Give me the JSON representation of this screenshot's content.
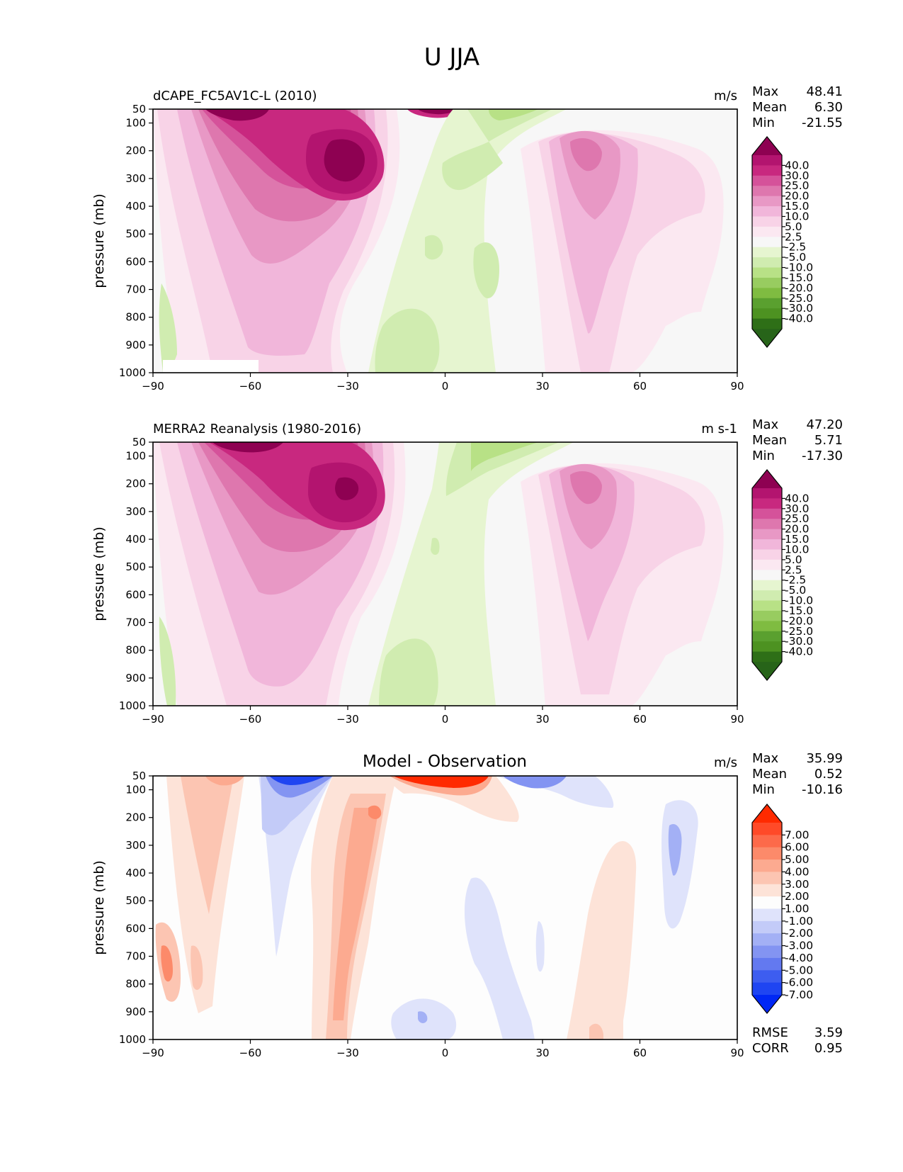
{
  "figure_title": "U JJA",
  "chart_data": [
    {
      "type": "contour",
      "title": "dCAPE_FC5AV1C-L (2010)",
      "units": "m/s",
      "xlabel": "",
      "ylabel": "pressure (mb)",
      "xlim": [
        -90,
        90
      ],
      "ylim": [
        1000,
        50
      ],
      "xticks": [
        "−90",
        "−60",
        "−30",
        "0",
        "30",
        "60",
        "90"
      ],
      "yticks": [
        "50",
        "100",
        "200",
        "300",
        "400",
        "500",
        "600",
        "700",
        "800",
        "900",
        "1000"
      ],
      "stats": [
        {
          "label": "Max",
          "value": "48.41"
        },
        {
          "label": "Mean",
          "value": "6.30"
        },
        {
          "label": "Min",
          "value": "-21.55"
        }
      ],
      "colorbar": {
        "labels": [
          "40.0",
          "30.0",
          "25.0",
          "20.0",
          "15.0",
          "10.0",
          "5.0",
          "2.5",
          "-2.5",
          "-5.0",
          "-10.0",
          "-15.0",
          "-20.0",
          "-25.0",
          "-30.0",
          "-40.0"
        ],
        "colors": [
          "#8e0152",
          "#b3146f",
          "#c8287f",
          "#d5529a",
          "#de77ae",
          "#e898c5",
          "#f1b6da",
          "#f8d3e7",
          "#fbe8f1",
          "#f7f7f7",
          "#e6f5d0",
          "#d0ecb0",
          "#b8e186",
          "#98cc60",
          "#7fbc41",
          "#5aa02f",
          "#4d9221",
          "#2e6f17",
          "#276419"
        ]
      },
      "features": [
        {
          "name": "southern-hemisphere-jet",
          "lat": -30,
          "plev": 200,
          "value": 45
        },
        {
          "name": "northern-hemisphere-jet",
          "lat": 43,
          "plev": 200,
          "value": 25
        },
        {
          "name": "tropical-easterlies",
          "lat": 10,
          "plev": 50,
          "value": -20
        }
      ]
    },
    {
      "type": "contour",
      "title": "MERRA2 Reanalysis (1980-2016)",
      "units": "m s-1",
      "xlabel": "",
      "ylabel": "pressure (mb)",
      "xlim": [
        -90,
        90
      ],
      "ylim": [
        1000,
        50
      ],
      "xticks": [
        "−90",
        "−60",
        "−30",
        "0",
        "30",
        "60",
        "90"
      ],
      "yticks": [
        "50",
        "100",
        "200",
        "300",
        "400",
        "500",
        "600",
        "700",
        "800",
        "900",
        "1000"
      ],
      "stats": [
        {
          "label": "Max",
          "value": "47.20"
        },
        {
          "label": "Mean",
          "value": "5.71"
        },
        {
          "label": "Min",
          "value": "-17.30"
        }
      ],
      "colorbar": {
        "labels": [
          "40.0",
          "30.0",
          "25.0",
          "20.0",
          "15.0",
          "10.0",
          "5.0",
          "2.5",
          "-2.5",
          "-5.0",
          "-10.0",
          "-15.0",
          "-20.0",
          "-25.0",
          "-30.0",
          "-40.0"
        ],
        "colors": [
          "#8e0152",
          "#b3146f",
          "#c8287f",
          "#d5529a",
          "#de77ae",
          "#e898c5",
          "#f1b6da",
          "#f8d3e7",
          "#fbe8f1",
          "#f7f7f7",
          "#e6f5d0",
          "#d0ecb0",
          "#b8e186",
          "#98cc60",
          "#7fbc41",
          "#5aa02f",
          "#4d9221",
          "#2e6f17",
          "#276419"
        ]
      },
      "features": [
        {
          "name": "southern-hemisphere-jet",
          "lat": -30,
          "plev": 200,
          "value": 43
        },
        {
          "name": "northern-hemisphere-jet",
          "lat": 43,
          "plev": 200,
          "value": 24
        },
        {
          "name": "tropical-easterlies",
          "lat": 8,
          "plev": 50,
          "value": -17
        }
      ]
    },
    {
      "type": "contour",
      "title": "Model - Observation",
      "units": "m/s",
      "xlabel": "",
      "ylabel": "pressure (mb)",
      "xlim": [
        -90,
        90
      ],
      "ylim": [
        1000,
        50
      ],
      "xticks": [
        "−90",
        "−60",
        "−30",
        "0",
        "30",
        "60",
        "90"
      ],
      "yticks": [
        "50",
        "100",
        "200",
        "300",
        "400",
        "500",
        "600",
        "700",
        "800",
        "900",
        "1000"
      ],
      "stats": [
        {
          "label": "Max",
          "value": "35.99"
        },
        {
          "label": "Mean",
          "value": "0.52"
        },
        {
          "label": "Min",
          "value": "-10.16"
        }
      ],
      "metrics": [
        {
          "label": "RMSE",
          "value": "3.59"
        },
        {
          "label": "CORR",
          "value": "0.95"
        }
      ],
      "colorbar": {
        "labels": [
          "7.00",
          "6.00",
          "5.00",
          "4.00",
          "3.00",
          "2.00",
          "1.00",
          "-1.00",
          "-2.00",
          "-3.00",
          "-4.00",
          "-5.00",
          "-6.00",
          "-7.00"
        ],
        "colors": [
          "#ff2a00",
          "#ff4a28",
          "#fd6a4a",
          "#fc8a6a",
          "#fcaa90",
          "#fcc5b2",
          "#fde3d8",
          "#fdfdfd",
          "#dfe3fb",
          "#c3cbf8",
          "#a3b0f5",
          "#8394f2",
          "#6379f0",
          "#3d5df0",
          "#1f45f2",
          "#0027f5"
        ]
      },
      "features": [
        {
          "name": "equatorial-westerly-bias",
          "lat": 0,
          "plev": 50,
          "value": 12
        },
        {
          "name": "southern-easterly-bias",
          "lat": -45,
          "plev": 50,
          "value": -9
        },
        {
          "name": "southern-subtropical-westerly-bias",
          "lat": -30,
          "plev": 300,
          "value": 4
        }
      ]
    }
  ]
}
